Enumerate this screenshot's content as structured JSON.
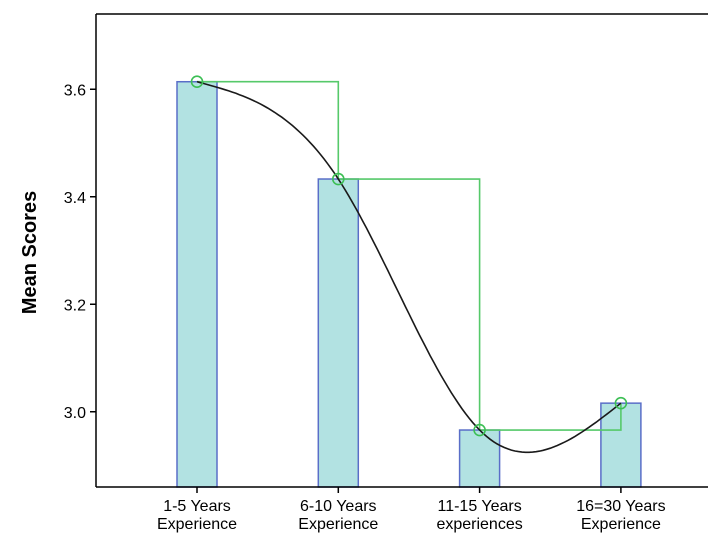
{
  "chart_data": {
    "type": "bar",
    "title": "",
    "xlabel": "",
    "ylabel": "Mean Scores",
    "categories": [
      [
        "1-5 Years",
        "Experience"
      ],
      [
        "6-10 Years",
        "Experience"
      ],
      [
        "11-15 Years",
        "experiences"
      ],
      [
        "16=30 Years",
        "Experience"
      ]
    ],
    "values": [
      3.614,
      3.433,
      2.966,
      3.016
    ],
    "ylim": [
      2.86,
      3.74
    ],
    "yticks": [
      "3.0",
      "3.2",
      "3.4",
      "3.6"
    ],
    "ytick_values": [
      3.0,
      3.2,
      3.4,
      3.6
    ],
    "grid": false,
    "overlays": [
      "step line",
      "smooth interpolation line",
      "point markers"
    ],
    "colors": {
      "bar_fill": "#b2e2e2",
      "bar_stroke": "#5a6ec8",
      "step_line": "#56c96a",
      "curve": "#1a1a1a",
      "marker": "#3cbf54",
      "axis": "#000000"
    }
  }
}
